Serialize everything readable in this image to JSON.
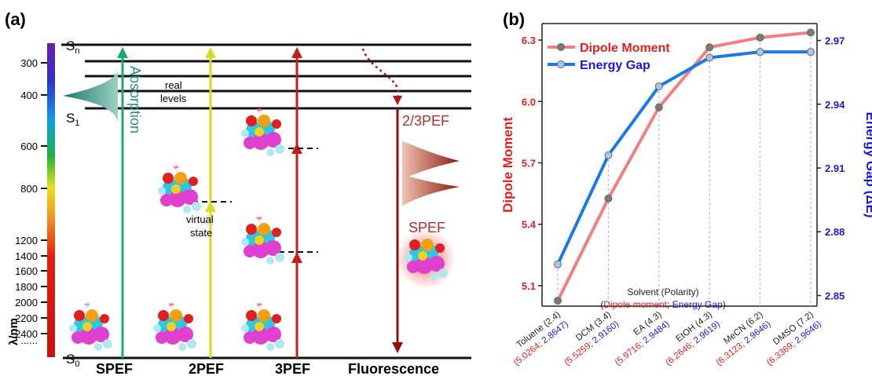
{
  "panel_a": {
    "label": "(a)",
    "wavelength_axis": {
      "title": "λ/nm",
      "ticks": [
        "300",
        "400",
        "600",
        "800",
        "1200",
        "1400",
        "1600",
        "1800",
        "2000",
        "2200",
        "2400",
        "......"
      ]
    },
    "states": {
      "sn": "S",
      "sn_sub": "n",
      "s1": "S",
      "s1_sub": "1",
      "s0": "S",
      "s0_sub": "0"
    },
    "real_levels_line1": "real",
    "real_levels_line2": "levels",
    "absorption": "Absorption",
    "virtual_state_line1": "virtual",
    "virtual_state_line2": "state",
    "pef_23": "2/3PEF",
    "spef_emission": "SPEF",
    "bottom_labels": [
      "SPEF",
      "2PEF",
      "3PEF",
      "Fluorescence"
    ],
    "colors": {
      "spef_arrow": "#1aaa6a",
      "pef2_arrow": "#e0d820",
      "pef3_arrow": "#cc1a1a",
      "fluorescence_arrow": "#8b1010",
      "absorption": "#2a8f7d",
      "emission": "#a8322a"
    }
  },
  "panel_b": {
    "label": "(b)",
    "chart_data": {
      "type": "line",
      "categories": [
        "Toluene (2.4)",
        "DCM (3.4)",
        "EA (4.3)",
        "EtOH (4.3)",
        "MeCN (6.2)",
        "DMSO (7.2)"
      ],
      "category_values": [
        "(5.0264; 2.8647)",
        "(5.5259; 2.9160)",
        "(5.9716; 2.9484)",
        "(6.2646; 2.9619)",
        "(6.3123; 2.9646)",
        "(6.3369; 2.9646)"
      ],
      "series": [
        {
          "name": "Dipole Moment",
          "axis": "left",
          "color": "#f08080",
          "marker": "#7a7a7a",
          "values": [
            5.0264,
            5.5259,
            5.9716,
            6.2646,
            6.3123,
            6.3369
          ]
        },
        {
          "name": "Energy Gap",
          "axis": "right",
          "color": "#1a7ae0",
          "marker": "#a8c8e8",
          "values": [
            2.8647,
            2.916,
            2.9484,
            2.9619,
            2.9646,
            2.9646
          ]
        }
      ],
      "ylabel_left": "Dipole Moment",
      "ylabel_right": "Energy Gap (ΔE)",
      "ylim_left": [
        5.0,
        6.35
      ],
      "ylim_right": [
        2.845,
        2.975
      ],
      "yticks_left": [
        "5.1",
        "5.4",
        "5.7",
        "6.0",
        "6.3"
      ],
      "yticks_right": [
        "2.85",
        "2.88",
        "2.91",
        "2.94",
        "2.97"
      ],
      "annotation_title": "Solvent (Polarity)",
      "annotation_open": "(",
      "annotation_dipole": "Dipole moment",
      "annotation_sep": "; ",
      "annotation_gap": "Energy Gap",
      "annotation_close": ")",
      "grid": false,
      "legend_position": "top-left",
      "colors": {
        "left_axis": "#e02020",
        "right_axis": "#1a1ad0"
      }
    }
  }
}
